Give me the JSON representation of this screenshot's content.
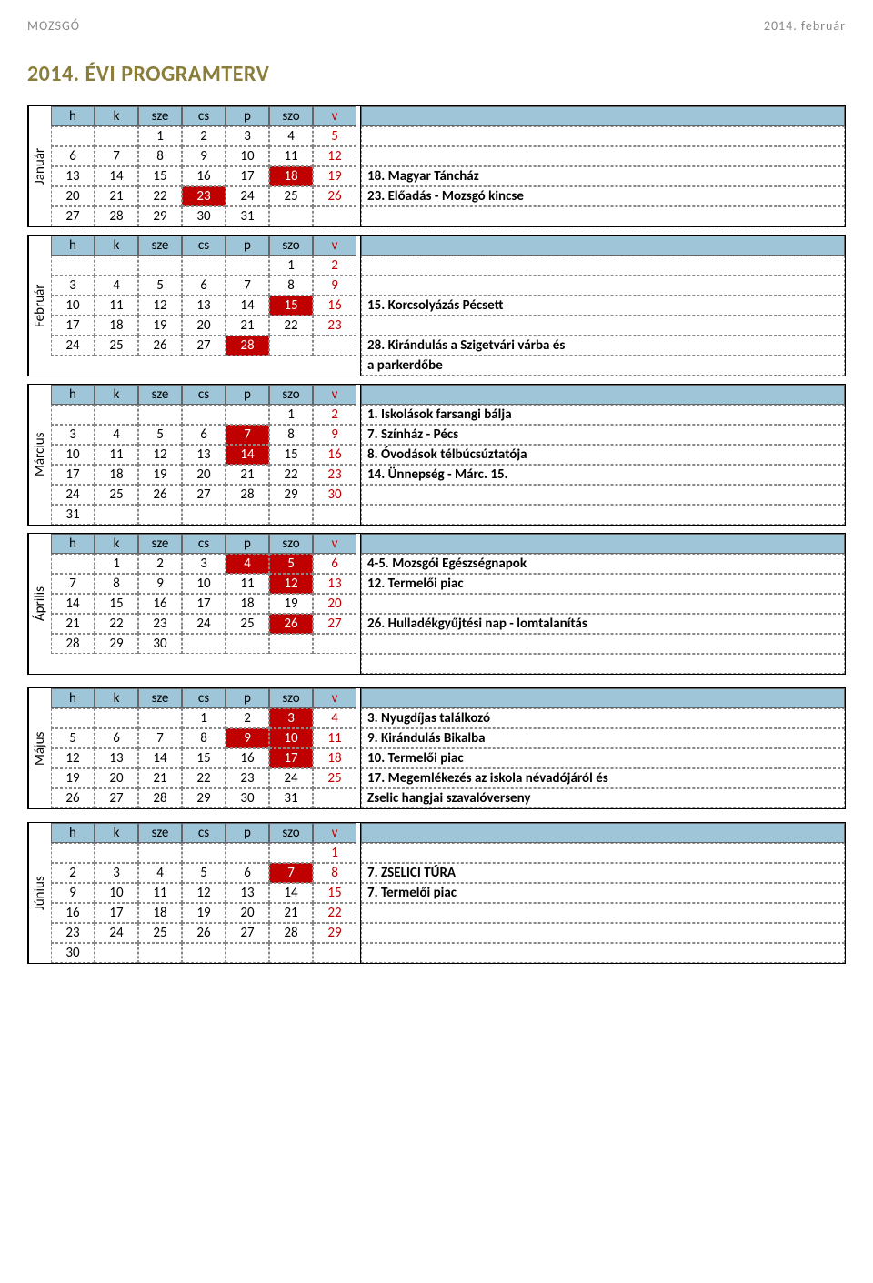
{
  "header_left": "MOZSGÓ",
  "header_right": "2014. február",
  "title": "2014. ÉVI PROGRAMTERV",
  "day_headers": [
    "h",
    "k",
    "sze",
    "cs",
    "p",
    "szo",
    "v"
  ],
  "highlight_color": "#c00000",
  "header_bg": "#9fc5d8",
  "months": [
    {
      "name": "Január",
      "weeks": [
        [
          "",
          "",
          "1",
          "2",
          "3",
          "4",
          "5"
        ],
        [
          "6",
          "7",
          "8",
          "9",
          "10",
          "11",
          "12"
        ],
        [
          "13",
          "14",
          "15",
          "16",
          "17",
          "18",
          "19"
        ],
        [
          "20",
          "21",
          "22",
          "23",
          "24",
          "25",
          "26"
        ],
        [
          "27",
          "28",
          "29",
          "30",
          "31",
          "",
          ""
        ]
      ],
      "highlights": [
        [
          2,
          5
        ],
        [
          3,
          3
        ]
      ],
      "events": [
        "",
        "",
        "",
        "18. Magyar Táncház",
        "23. Előadás - Mozsgó kincse",
        ""
      ]
    },
    {
      "name": "Február",
      "weeks": [
        [
          "",
          "",
          "",
          "",
          "",
          "1",
          "2"
        ],
        [
          "3",
          "4",
          "5",
          "6",
          "7",
          "8",
          "9"
        ],
        [
          "10",
          "11",
          "12",
          "13",
          "14",
          "15",
          "16"
        ],
        [
          "17",
          "18",
          "19",
          "20",
          "21",
          "22",
          "23"
        ],
        [
          "24",
          "25",
          "26",
          "27",
          "28",
          "",
          ""
        ]
      ],
      "highlights": [
        [
          2,
          5
        ],
        [
          4,
          4
        ]
      ],
      "events": [
        "",
        "",
        "",
        "15. Korcsolyázás Pécsett",
        "",
        "28. Kirándulás a Szigetvári várba és",
        "a parkerdőbe"
      ]
    },
    {
      "name": "Március",
      "weeks": [
        [
          "",
          "",
          "",
          "",
          "",
          "1",
          "2"
        ],
        [
          "3",
          "4",
          "5",
          "6",
          "7",
          "8",
          "9"
        ],
        [
          "10",
          "11",
          "12",
          "13",
          "14",
          "15",
          "16"
        ],
        [
          "17",
          "18",
          "19",
          "20",
          "21",
          "22",
          "23"
        ],
        [
          "24",
          "25",
          "26",
          "27",
          "28",
          "29",
          "30"
        ],
        [
          "31",
          "",
          "",
          "",
          "",
          "",
          ""
        ]
      ],
      "highlights": [
        [
          1,
          4
        ],
        [
          2,
          4
        ]
      ],
      "events": [
        "",
        "1. Iskolások farsangi bálja",
        "7. Színház - Pécs",
        "8. Óvodások télbúcsúztatója",
        "14. Ünnepség - Márc. 15.",
        "",
        ""
      ]
    },
    {
      "name": "Április",
      "weeks": [
        [
          "",
          "1",
          "2",
          "3",
          "4",
          "5",
          "6"
        ],
        [
          "7",
          "8",
          "9",
          "10",
          "11",
          "12",
          "13"
        ],
        [
          "14",
          "15",
          "16",
          "17",
          "18",
          "19",
          "20"
        ],
        [
          "21",
          "22",
          "23",
          "24",
          "25",
          "26",
          "27"
        ],
        [
          "28",
          "29",
          "30",
          "",
          "",
          "",
          ""
        ]
      ],
      "highlights": [
        [
          0,
          4
        ],
        [
          0,
          5
        ],
        [
          1,
          5
        ],
        [
          3,
          5
        ]
      ],
      "events": [
        "",
        "4-5. Mozsgói Egészségnapok",
        "12. Termelői piac",
        "",
        "26. Hulladékgyűjtési nap - lomtalanítás",
        "",
        ""
      ]
    },
    {
      "name": "Május",
      "weeks": [
        [
          "",
          "",
          "",
          "1",
          "2",
          "3",
          "4"
        ],
        [
          "5",
          "6",
          "7",
          "8",
          "9",
          "10",
          "11"
        ],
        [
          "12",
          "13",
          "14",
          "15",
          "16",
          "17",
          "18"
        ],
        [
          "19",
          "20",
          "21",
          "22",
          "23",
          "24",
          "25"
        ],
        [
          "26",
          "27",
          "28",
          "29",
          "30",
          "31",
          ""
        ]
      ],
      "highlights": [
        [
          0,
          5
        ],
        [
          1,
          4
        ],
        [
          1,
          5
        ],
        [
          2,
          5
        ]
      ],
      "events": [
        "",
        "3. Nyugdíjas találkozó",
        "9. Kirándulás Bikalba",
        "10. Termelői piac",
        "17. Megemlékezés az iskola névadójáról és",
        "Zselic hangjai szavalóverseny"
      ]
    },
    {
      "name": "Június",
      "weeks": [
        [
          "",
          "",
          "",
          "",
          "",
          "",
          "1"
        ],
        [
          "2",
          "3",
          "4",
          "5",
          "6",
          "7",
          "8"
        ],
        [
          "9",
          "10",
          "11",
          "12",
          "13",
          "14",
          "15"
        ],
        [
          "16",
          "17",
          "18",
          "19",
          "20",
          "21",
          "22"
        ],
        [
          "23",
          "24",
          "25",
          "26",
          "27",
          "28",
          "29"
        ],
        [
          "30",
          "",
          "",
          "",
          "",
          "",
          ""
        ]
      ],
      "highlights": [
        [
          1,
          5
        ]
      ],
      "events": [
        "",
        "",
        "7. ZSELICI TÚRA",
        "7. Termelői piac",
        "",
        "",
        ""
      ]
    }
  ]
}
